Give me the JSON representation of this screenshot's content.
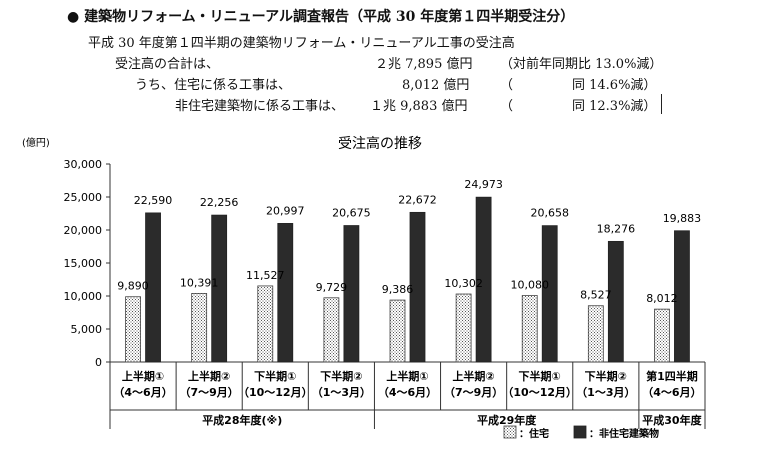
{
  "report": {
    "bullet": "●",
    "title": "建築物リフォーム・リニューアル調査報告（平成 30 年度第１四半期受注分）",
    "subtitle": "平成 30 年度第１四半期の建築物リフォーム・リニューアル工事の受注高",
    "rows": [
      {
        "label": "受注高の合計は、",
        "amount": "２兆 7,895 億円",
        "change": "（対前年同期比 13.0%減）"
      },
      {
        "label": "うち、住宅に係る工事は、",
        "amount": "8,012 億円",
        "paren": "（",
        "change": "同 14.6%減）"
      },
      {
        "label": "非住宅建築物に係る工事は、",
        "amount": "１兆 9,883 億円",
        "paren": "（",
        "change": "同 12.3%減）"
      }
    ]
  },
  "chart_data": {
    "type": "bar",
    "title": "受注高の推移",
    "ylabel": "(億円)",
    "ylim": [
      0,
      30000
    ],
    "yticks": [
      "0",
      "5,000",
      "10,000",
      "15,000",
      "20,000",
      "25,000",
      "30,000"
    ],
    "categories": [
      [
        "上半期①",
        "（4～6月）"
      ],
      [
        "上半期②",
        "（7～9月）"
      ],
      [
        "下半期①",
        "（10～12月）"
      ],
      [
        "下半期②",
        "（1～3月）"
      ],
      [
        "上半期①",
        "（4～6月）"
      ],
      [
        "上半期②",
        "（7～9月）"
      ],
      [
        "下半期①",
        "（10～12月）"
      ],
      [
        "下半期②",
        "（1～3月）"
      ],
      [
        "第1四半期",
        "（4～6月）"
      ]
    ],
    "groups": [
      {
        "label": "平成28年度(※)",
        "span": [
          0,
          3
        ]
      },
      {
        "label": "平成29年度",
        "span": [
          4,
          7
        ]
      },
      {
        "label": "平成30年度",
        "span": [
          8,
          8
        ]
      }
    ],
    "series": [
      {
        "name": "住宅",
        "pattern": "dotted",
        "values": [
          9890,
          10391,
          11527,
          9729,
          9386,
          10302,
          10080,
          8527,
          8012
        ],
        "labels": [
          "9,890",
          "10,391",
          "11,527",
          "9,729",
          "9,386",
          "10,302",
          "10,080",
          "8,527",
          "8,012"
        ]
      },
      {
        "name": "非住宅建築物",
        "color": "#2b2b2b",
        "values": [
          22590,
          22256,
          20997,
          20675,
          22672,
          24973,
          20658,
          18276,
          19883
        ],
        "labels": [
          "22,590",
          "22,256",
          "20,997",
          "20,675",
          "22,672",
          "24,973",
          "20,658",
          "18,276",
          "19,883"
        ]
      }
    ],
    "legend": [
      {
        "label": "：住宅",
        "pattern": "dotted"
      },
      {
        "label": "：非住宅建築物",
        "color": "#2b2b2b"
      }
    ],
    "legend_position": "bottom-right",
    "grid": false
  }
}
